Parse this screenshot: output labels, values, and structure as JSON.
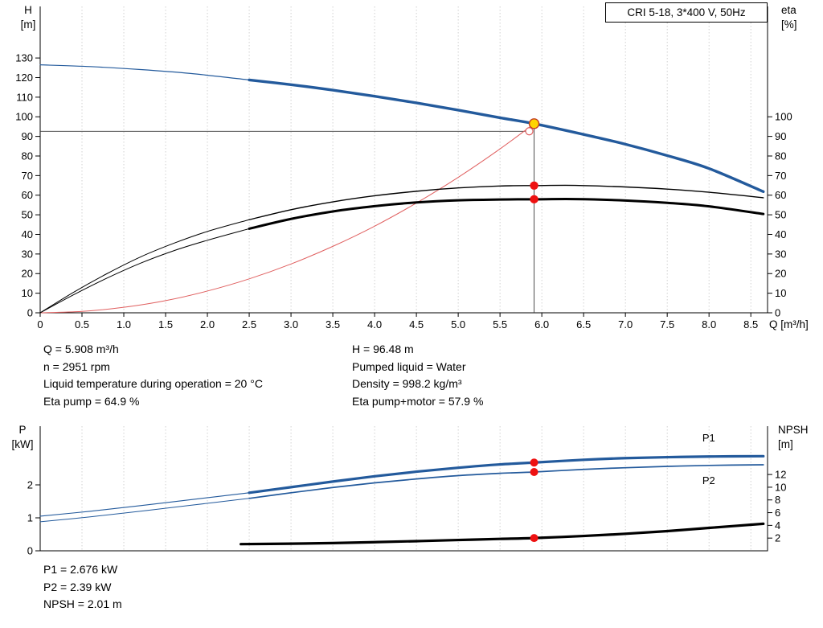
{
  "axis_headers": {
    "h_1": "H",
    "h_2": "[m]",
    "eta_1": "eta",
    "eta_2": "[%]",
    "q_unit": "Q [m³/h]",
    "p_1": "P",
    "p_2": "[kW]",
    "npsh_1": "NPSH",
    "npsh_2": "[m]"
  },
  "info_top": {
    "left": [
      "Q = 5.908 m³/h",
      "n = 2951 rpm",
      "Liquid temperature during operation = 20 °C",
      "Eta pump = 64.9 %"
    ],
    "right": [
      "H = 96.48 m",
      "Pumped liquid = Water",
      "Density = 998.2 kg/m³",
      "Eta pump+motor = 57.9 %"
    ]
  },
  "info_bottom": [
    "P1 = 2.676 kW",
    "P2 = 2.39 kW",
    "NPSH = 2.01 m"
  ],
  "duty_point": {
    "Q_m3h": 5.908,
    "H_m": 96.48,
    "eta_pump_pct": 64.9,
    "eta_pump_motor_pct": 57.9,
    "P1_kW": 2.676,
    "P2_kW": 2.39,
    "NPSH_m": 2.01
  },
  "chart_data": [
    {
      "type": "line",
      "name": "qh-chart",
      "title": "CRI 5-18, 3*400 V, 50Hz",
      "x": {
        "min": 0,
        "max": 8.7,
        "label": "Q [m³/h]"
      },
      "x_ticks": [
        {
          "v": 0,
          "t": "0"
        },
        {
          "v": 0.5,
          "t": "0.5"
        },
        {
          "v": 1,
          "t": "1.0"
        },
        {
          "v": 1.5,
          "t": "1.5"
        },
        {
          "v": 2,
          "t": "2.0"
        },
        {
          "v": 2.5,
          "t": "2.5"
        },
        {
          "v": 3,
          "t": "3.0"
        },
        {
          "v": 3.5,
          "t": "3.5"
        },
        {
          "v": 4,
          "t": "4.0"
        },
        {
          "v": 4.5,
          "t": "4.5"
        },
        {
          "v": 5,
          "t": "5.0"
        },
        {
          "v": 5.5,
          "t": "5.5"
        },
        {
          "v": 6,
          "t": "6.0"
        },
        {
          "v": 6.5,
          "t": "6.5"
        },
        {
          "v": 7,
          "t": "7.0"
        },
        {
          "v": 7.5,
          "t": "7.5"
        },
        {
          "v": 8,
          "t": "8.0"
        },
        {
          "v": 8.5,
          "t": "8.5"
        }
      ],
      "grid_x": [
        0.5,
        1,
        1.5,
        2,
        2.5,
        3,
        3.5,
        4,
        4.5,
        5,
        5.5,
        6,
        6.5,
        7,
        7.5,
        8,
        8.5
      ],
      "y_left": {
        "min": 0,
        "max": 156.3,
        "label": "H [m]",
        "ticks": [
          {
            "v": 0,
            "t": "0"
          },
          {
            "v": 10,
            "t": "10"
          },
          {
            "v": 20,
            "t": "20"
          },
          {
            "v": 30,
            "t": "30"
          },
          {
            "v": 40,
            "t": "40"
          },
          {
            "v": 50,
            "t": "50"
          },
          {
            "v": 60,
            "t": "60"
          },
          {
            "v": 70,
            "t": "70"
          },
          {
            "v": 80,
            "t": "80"
          },
          {
            "v": 90,
            "t": "90"
          },
          {
            "v": 100,
            "t": "100"
          },
          {
            "v": 110,
            "t": "110"
          },
          {
            "v": 120,
            "t": "120"
          },
          {
            "v": 130,
            "t": "130"
          }
        ]
      },
      "y_right": {
        "min": 0,
        "max": 156.3,
        "label": "eta [%]",
        "ticks": [
          {
            "v": 0,
            "t": "0"
          },
          {
            "v": 10,
            "t": "10"
          },
          {
            "v": 20,
            "t": "20"
          },
          {
            "v": 30,
            "t": "30"
          },
          {
            "v": 40,
            "t": "40"
          },
          {
            "v": 50,
            "t": "50"
          },
          {
            "v": 60,
            "t": "60"
          },
          {
            "v": 70,
            "t": "70"
          },
          {
            "v": 80,
            "t": "80"
          },
          {
            "v": 90,
            "t": "90"
          },
          {
            "v": 100,
            "t": "100"
          }
        ]
      },
      "plot": {
        "l": 50,
        "r": 955,
        "t": 8,
        "b": 389
      },
      "guides": [
        {
          "type": "v",
          "x": 5.908,
          "y1": 0,
          "y2": 96.48
        },
        {
          "type": "h",
          "y": 92.6,
          "x1": 0,
          "x2": 5.85
        }
      ],
      "series": [
        {
          "name": "system-curve",
          "color": "#e06060",
          "width": 1,
          "axis": "left",
          "points": [
            [
              0,
              0
            ],
            [
              0.5,
              0.7
            ],
            [
              1,
              2.8
            ],
            [
              1.5,
              6.2
            ],
            [
              2,
              11.1
            ],
            [
              2.5,
              17.3
            ],
            [
              3,
              24.9
            ],
            [
              3.5,
              33.9
            ],
            [
              4,
              44.2
            ],
            [
              4.5,
              56.0
            ],
            [
              5,
              69.1
            ],
            [
              5.5,
              83.6
            ],
            [
              5.908,
              96.48
            ]
          ]
        },
        {
          "name": "head-curve-extrapolated",
          "color": "#235a9c",
          "width": 1.2,
          "axis": "left",
          "points": [
            [
              0,
              126.5
            ],
            [
              0.6,
              125.6
            ],
            [
              1.2,
              124.1
            ],
            [
              1.8,
              122.1
            ],
            [
              2.5,
              118.8
            ]
          ]
        },
        {
          "name": "head-curve",
          "color": "#235a9c",
          "width": 3.4,
          "axis": "left",
          "points": [
            [
              2.5,
              118.8
            ],
            [
              3,
              116.4
            ],
            [
              3.5,
              113.6
            ],
            [
              4,
              110.5
            ],
            [
              4.5,
              107.1
            ],
            [
              5,
              103.4
            ],
            [
              5.5,
              99.5
            ],
            [
              5.908,
              96.48
            ],
            [
              6.5,
              91.0
            ],
            [
              7,
              86.0
            ],
            [
              7.5,
              80.2
            ],
            [
              8,
              73.6
            ],
            [
              8.65,
              61.8
            ]
          ]
        },
        {
          "name": "eta-pump-curve-extrapolated",
          "color": "#000000",
          "width": 1,
          "axis": "right",
          "points": [
            [
              0,
              0
            ],
            [
              0.4,
              10.5
            ],
            [
              0.8,
              20
            ],
            [
              1.2,
              28.5
            ],
            [
              1.6,
              35.5
            ],
            [
              2,
              41.5
            ],
            [
              2.5,
              47.5
            ]
          ]
        },
        {
          "name": "eta-pump-curve",
          "color": "#000000",
          "width": 1.4,
          "axis": "right",
          "points": [
            [
              2.5,
              47.5
            ],
            [
              3,
              52.6
            ],
            [
              3.5,
              56.6
            ],
            [
              4,
              59.7
            ],
            [
              4.5,
              62
            ],
            [
              5,
              63.7
            ],
            [
              5.5,
              64.7
            ],
            [
              5.908,
              64.9
            ],
            [
              6.4,
              65
            ],
            [
              7,
              64.2
            ],
            [
              7.5,
              63.1
            ],
            [
              8,
              61.5
            ],
            [
              8.65,
              58.7
            ]
          ]
        },
        {
          "name": "eta-pump-motor-curve-extrapolated",
          "color": "#000000",
          "width": 1,
          "axis": "right",
          "points": [
            [
              0,
              0
            ],
            [
              0.4,
              9.2
            ],
            [
              0.8,
              17.7
            ],
            [
              1.2,
              25.3
            ],
            [
              1.6,
              31.7
            ],
            [
              2,
              37
            ],
            [
              2.5,
              42.9
            ]
          ]
        },
        {
          "name": "eta-pump-motor-curve",
          "color": "#000000",
          "width": 3,
          "axis": "right",
          "points": [
            [
              2.5,
              42.9
            ],
            [
              3,
              47.9
            ],
            [
              3.5,
              51.7
            ],
            [
              4,
              54.4
            ],
            [
              4.5,
              56.3
            ],
            [
              5,
              57.4
            ],
            [
              5.5,
              57.8
            ],
            [
              5.908,
              57.9
            ],
            [
              6.4,
              58
            ],
            [
              7,
              57.3
            ],
            [
              7.5,
              56.1
            ],
            [
              8,
              54.3
            ],
            [
              8.65,
              50.4
            ]
          ]
        }
      ],
      "markers": [
        {
          "name": "requested-duty-point-open",
          "x": 5.85,
          "y": 92.6,
          "axis": "left",
          "r": 4.5,
          "fill": "#ffffff",
          "stroke": "#e06060",
          "sw": 1.2
        },
        {
          "name": "duty-point",
          "x": 5.908,
          "y": 96.48,
          "axis": "left",
          "r": 6,
          "fill": "#ffd400",
          "stroke": "#c23b22",
          "sw": 1.4
        },
        {
          "name": "eta-pump-dot",
          "x": 5.908,
          "y": 64.9,
          "axis": "right",
          "r": 5.2,
          "fill": "#ee1111"
        },
        {
          "name": "eta-pump-motor-dot",
          "x": 5.908,
          "y": 57.9,
          "axis": "right",
          "r": 5.2,
          "fill": "#ee1111"
        }
      ],
      "labels": []
    },
    {
      "type": "line",
      "name": "power-npsh-chart",
      "title": "",
      "x": {
        "min": 0,
        "max": 8.7,
        "label": ""
      },
      "x_ticks": [],
      "grid_x": [
        0.5,
        1,
        1.5,
        2,
        2.5,
        3,
        3.5,
        4,
        4.5,
        5,
        5.5,
        6,
        6.5,
        7,
        7.5,
        8,
        8.5
      ],
      "y_left": {
        "min": 0,
        "max": 3.78,
        "label": "P [kW]",
        "ticks": [
          {
            "v": 0,
            "t": "0"
          },
          {
            "v": 1,
            "t": "1"
          },
          {
            "v": 2,
            "t": "2"
          }
        ]
      },
      "y_right": {
        "min": 0,
        "max": 19.6,
        "label": "NPSH [m]",
        "ticks": [
          {
            "v": 2,
            "t": "2"
          },
          {
            "v": 4,
            "t": "4"
          },
          {
            "v": 6,
            "t": "6"
          },
          {
            "v": 8,
            "t": "8"
          },
          {
            "v": 10,
            "t": "10"
          },
          {
            "v": 12,
            "t": "12"
          }
        ]
      },
      "plot": {
        "l": 50,
        "r": 955,
        "t": 10,
        "b": 165
      },
      "guides": [],
      "series": [
        {
          "name": "p1-curve-extrapolated",
          "color": "#235a9c",
          "width": 1.1,
          "axis": "left",
          "points": [
            [
              0,
              1.05
            ],
            [
              0.6,
              1.2
            ],
            [
              1.2,
              1.37
            ],
            [
              1.8,
              1.55
            ],
            [
              2.5,
              1.76
            ]
          ]
        },
        {
          "name": "p1-curve",
          "color": "#235a9c",
          "width": 3.2,
          "axis": "left",
          "points": [
            [
              2.5,
              1.76
            ],
            [
              3,
              1.93
            ],
            [
              3.5,
              2.1
            ],
            [
              4,
              2.26
            ],
            [
              4.5,
              2.4
            ],
            [
              5,
              2.52
            ],
            [
              5.5,
              2.62
            ],
            [
              5.908,
              2.676
            ],
            [
              6.5,
              2.76
            ],
            [
              7,
              2.81
            ],
            [
              7.5,
              2.84
            ],
            [
              8,
              2.86
            ],
            [
              8.65,
              2.87
            ]
          ]
        },
        {
          "name": "p2-curve-extrapolated",
          "color": "#235a9c",
          "width": 1,
          "axis": "left",
          "points": [
            [
              0,
              0.88
            ],
            [
              0.6,
              1.03
            ],
            [
              1.2,
              1.2
            ],
            [
              1.8,
              1.38
            ],
            [
              2.5,
              1.59
            ]
          ]
        },
        {
          "name": "p2-curve",
          "color": "#235a9c",
          "width": 1.7,
          "axis": "left",
          "points": [
            [
              2.5,
              1.59
            ],
            [
              3,
              1.76
            ],
            [
              3.5,
              1.92
            ],
            [
              4,
              2.06
            ],
            [
              4.5,
              2.18
            ],
            [
              5,
              2.28
            ],
            [
              5.5,
              2.35
            ],
            [
              5.908,
              2.39
            ],
            [
              6.5,
              2.47
            ],
            [
              7,
              2.52
            ],
            [
              7.5,
              2.56
            ],
            [
              8,
              2.59
            ],
            [
              8.65,
              2.61
            ]
          ]
        },
        {
          "name": "npsh-curve",
          "color": "#000000",
          "width": 3.2,
          "axis": "right",
          "points": [
            [
              2.4,
              1.05
            ],
            [
              3,
              1.12
            ],
            [
              3.5,
              1.22
            ],
            [
              4,
              1.36
            ],
            [
              4.5,
              1.52
            ],
            [
              5,
              1.7
            ],
            [
              5.5,
              1.87
            ],
            [
              5.908,
              2.01
            ],
            [
              6.5,
              2.33
            ],
            [
              7,
              2.68
            ],
            [
              7.5,
              3.1
            ],
            [
              8,
              3.6
            ],
            [
              8.65,
              4.25
            ]
          ]
        }
      ],
      "markers": [
        {
          "name": "p1-dot",
          "x": 5.908,
          "y": 2.676,
          "axis": "left",
          "r": 5,
          "fill": "#ee1111"
        },
        {
          "name": "p2-dot",
          "x": 5.908,
          "y": 2.39,
          "axis": "left",
          "r": 5,
          "fill": "#ee1111"
        },
        {
          "name": "npsh-dot",
          "x": 5.908,
          "y": 2.01,
          "axis": "right",
          "r": 5,
          "fill": "#ee1111"
        }
      ],
      "labels": [
        {
          "name": "p1-label",
          "text": "P1",
          "x": 7.92,
          "y": 3.32,
          "axis": "left",
          "color": "#235a9c"
        },
        {
          "name": "p2-label",
          "text": "P2",
          "x": 7.92,
          "y": 2.02,
          "axis": "left",
          "color": "#235a9c"
        }
      ]
    }
  ]
}
